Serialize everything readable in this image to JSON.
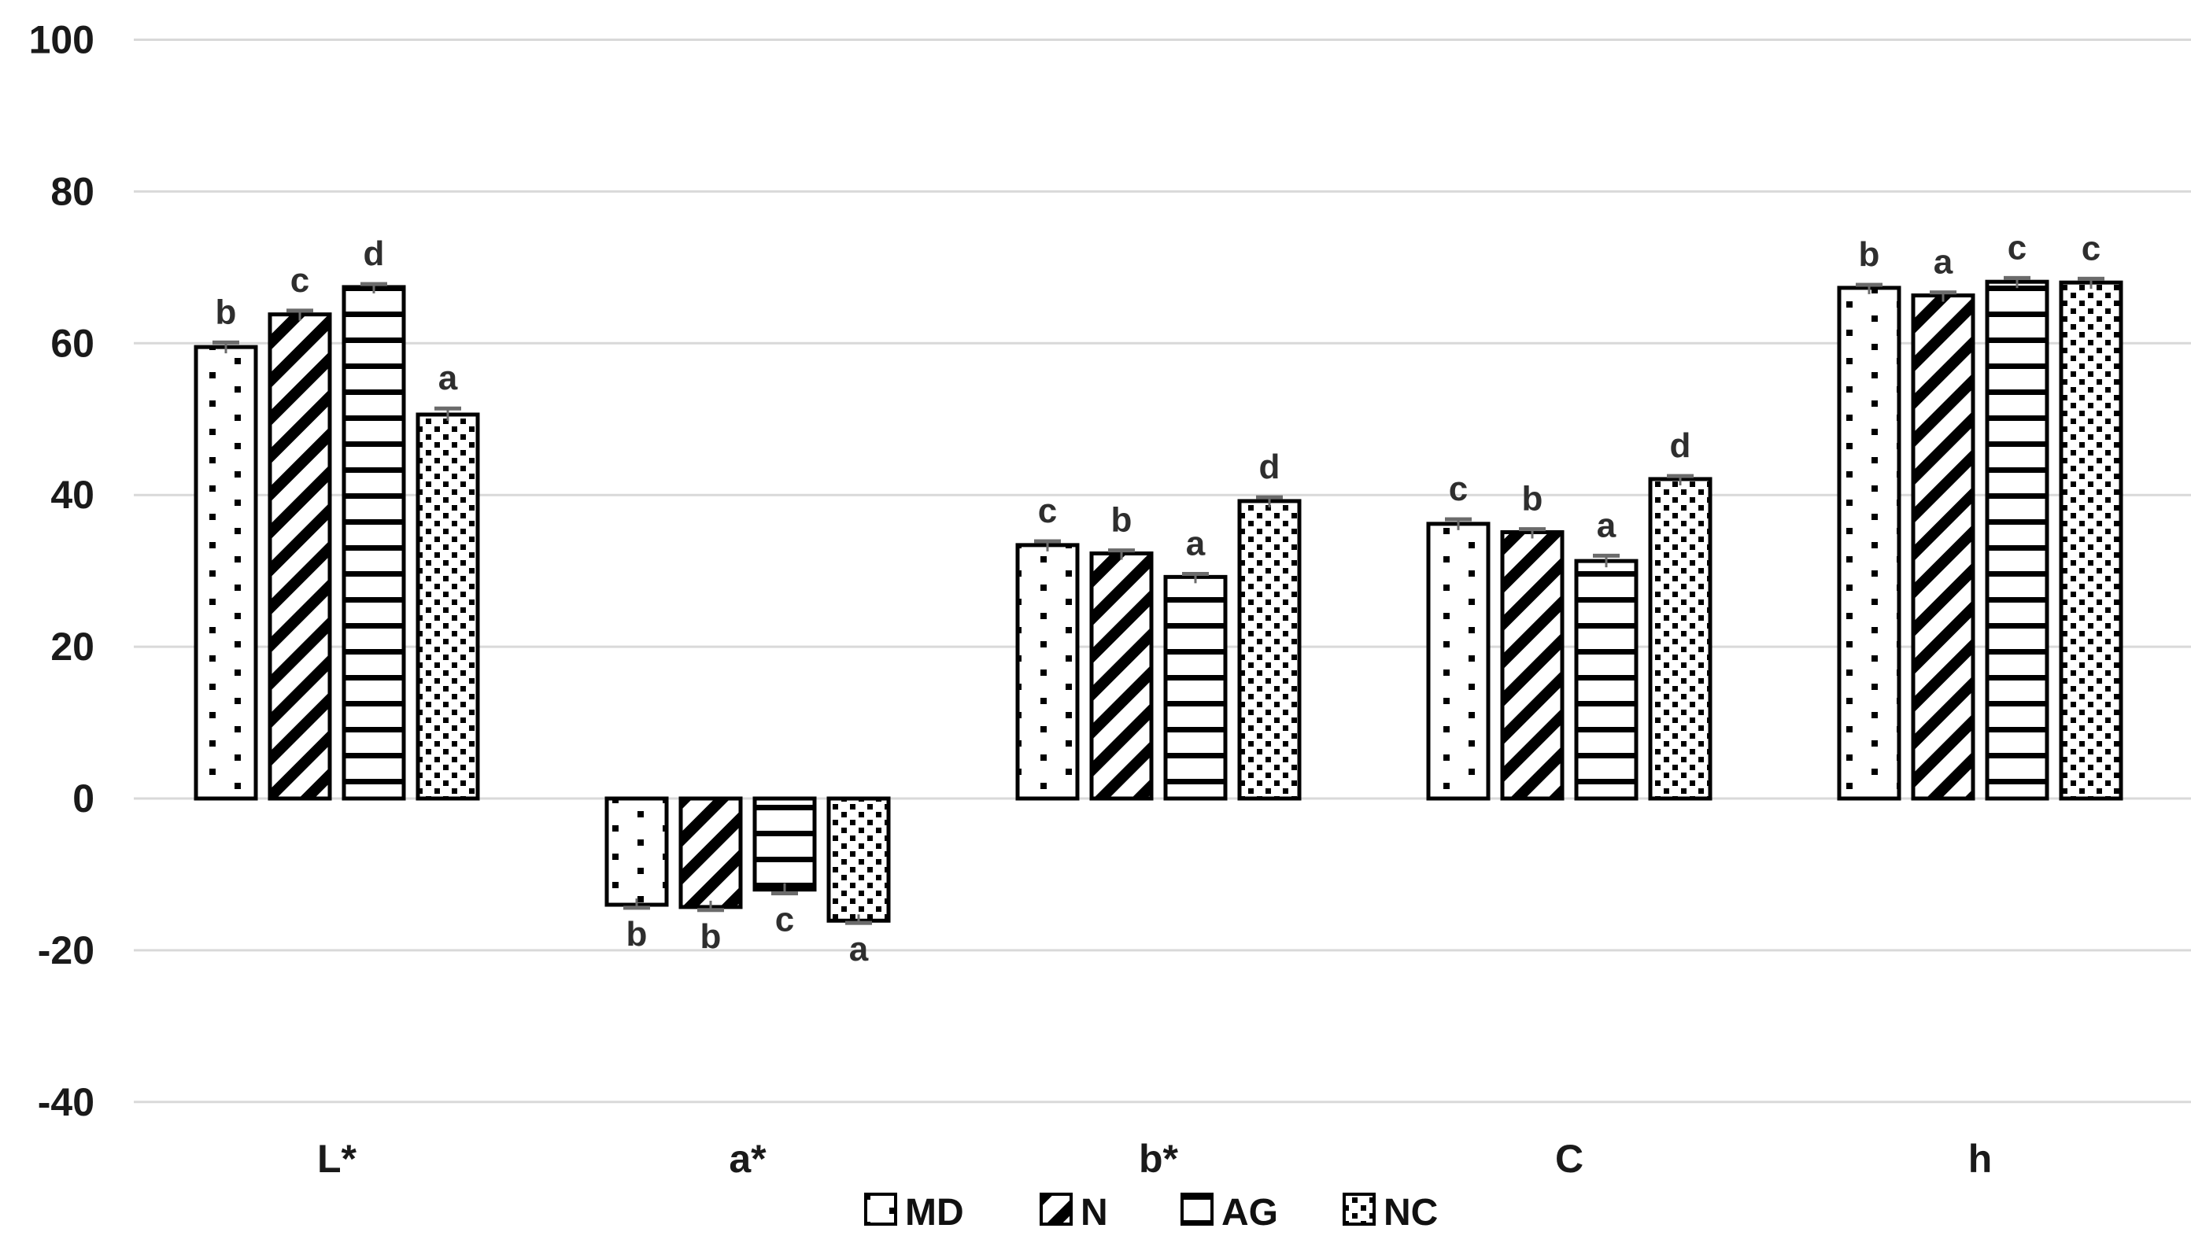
{
  "chart_data": {
    "type": "bar",
    "title": "",
    "xlabel": "",
    "ylabel": "",
    "categories": [
      "L*",
      "a*",
      "b*",
      "C",
      "h"
    ],
    "series": [
      {
        "name": "MD",
        "fill_pattern": "sparse-dots",
        "values": [
          59.5,
          -14.0,
          33.4,
          36.2,
          67.3
        ],
        "letters": [
          "b",
          "b",
          "c",
          "c",
          "b"
        ],
        "errors": [
          0.6,
          0.4,
          0.5,
          0.6,
          0.4
        ]
      },
      {
        "name": "N",
        "fill_pattern": "diagonal-stripes",
        "values": [
          63.8,
          -14.3,
          32.3,
          35.1,
          66.3
        ],
        "letters": [
          "c",
          "b",
          "b",
          "b",
          "a"
        ],
        "errors": [
          0.5,
          0.4,
          0.4,
          0.4,
          0.4
        ]
      },
      {
        "name": "AG",
        "fill_pattern": "horizontal-stripes",
        "values": [
          67.4,
          -12.0,
          29.2,
          31.3,
          68.1
        ],
        "letters": [
          "d",
          "c",
          "a",
          "a",
          "c"
        ],
        "errors": [
          0.4,
          0.5,
          0.4,
          0.7,
          0.5
        ]
      },
      {
        "name": "NC",
        "fill_pattern": "dense-dots",
        "values": [
          50.6,
          -16.1,
          39.2,
          42.1,
          68.0
        ],
        "letters": [
          "a",
          "a",
          "d",
          "d",
          "c"
        ],
        "errors": [
          0.8,
          0.3,
          0.5,
          0.4,
          0.5
        ]
      }
    ],
    "ylim": [
      -40,
      100
    ],
    "yticks": [
      100,
      80,
      60,
      40,
      20,
      0,
      -20,
      -40
    ],
    "ytick_labels": [
      "100",
      "80",
      "60",
      "40",
      "20",
      "0",
      "-20",
      "-40"
    ],
    "grid": "horizontal",
    "legend_position": "bottom-center",
    "legend_labels": [
      "MD",
      "N",
      "AG",
      "NC"
    ],
    "colors": {
      "background": "#ffffff",
      "bar_fill": "#ffffff",
      "bar_stroke": "#000000",
      "gridline": "#d9d9d9",
      "error_bar": "#6b6b6b",
      "axis_text": "#1a1a1a",
      "letter_text": "#2e2e2e"
    }
  }
}
